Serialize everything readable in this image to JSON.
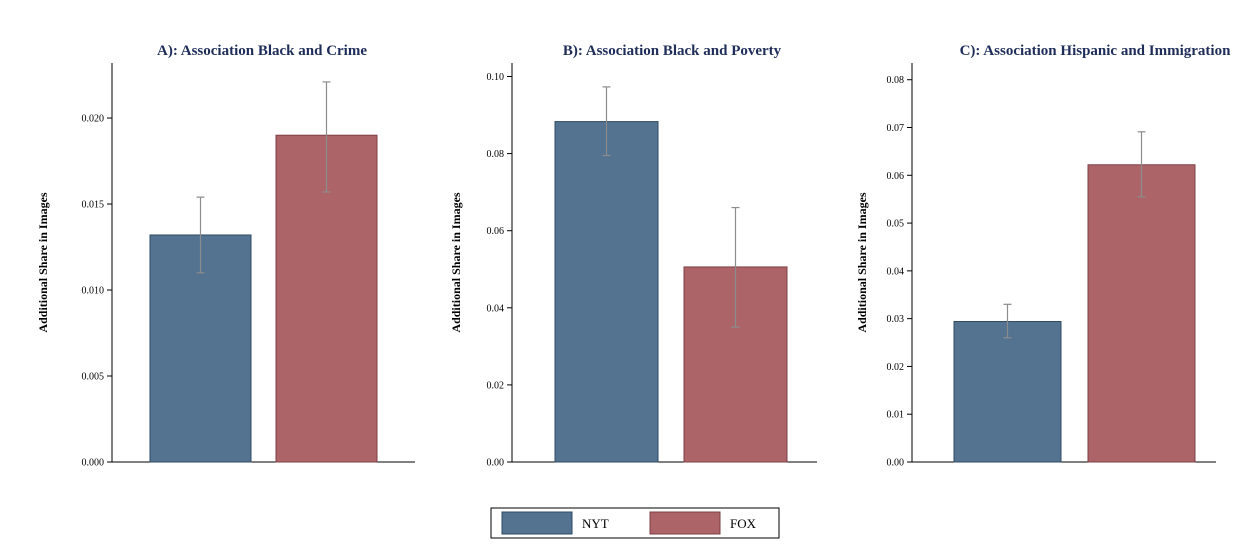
{
  "chart_data": [
    {
      "type": "bar",
      "title": "A): Association Black and Crime",
      "ylabel": "Additional Share in Images",
      "xlabel": "",
      "categories": [
        "NYT",
        "FOX"
      ],
      "values": [
        0.0132,
        0.019
      ],
      "error_bars": [
        [
          0.011,
          0.0154
        ],
        [
          0.0157,
          0.0221
        ]
      ],
      "ylim": [
        0,
        0.0232
      ],
      "yticks": [
        0.0,
        0.005,
        0.01,
        0.015,
        0.02
      ],
      "ytick_labels": [
        "0.000",
        "0.005",
        "0.010",
        "0.015",
        "0.020"
      ]
    },
    {
      "type": "bar",
      "title": "B): Association Black and Poverty",
      "ylabel": "Additional Share in Images",
      "xlabel": "",
      "categories": [
        "NYT",
        "FOX"
      ],
      "values": [
        0.0883,
        0.0506
      ],
      "error_bars": [
        [
          0.0795,
          0.0973
        ],
        [
          0.035,
          0.066
        ]
      ],
      "ylim": [
        0,
        0.1035
      ],
      "yticks": [
        0.0,
        0.02,
        0.04,
        0.06,
        0.08,
        0.1
      ],
      "ytick_labels": [
        "0.00",
        "0.02",
        "0.04",
        "0.06",
        "0.08",
        "0.10"
      ]
    },
    {
      "type": "bar",
      "title": "C): Association Hispanic and Immigration",
      "ylabel": "Additional Share in Images",
      "xlabel": "",
      "categories": [
        "NYT",
        "FOX"
      ],
      "values": [
        0.0294,
        0.0622
      ],
      "error_bars": [
        [
          0.026,
          0.033
        ],
        [
          0.0555,
          0.0691
        ]
      ],
      "ylim": [
        0,
        0.0835
      ],
      "yticks": [
        0.0,
        0.01,
        0.02,
        0.03,
        0.04,
        0.05,
        0.06,
        0.07,
        0.08
      ],
      "ytick_labels": [
        "0.00",
        "0.01",
        "0.02",
        "0.03",
        "0.04",
        "0.05",
        "0.06",
        "0.07",
        "0.08"
      ]
    }
  ],
  "legend": {
    "placement": "bottom-center",
    "items": [
      {
        "label": "NYT",
        "color": "#537391"
      },
      {
        "label": "FOX",
        "color": "#ac6469"
      }
    ]
  },
  "colors": {
    "nyt_fill": "#537391",
    "nyt_edge": "#2f4a63",
    "fox_fill": "#ac6469",
    "fox_edge": "#7e3f44",
    "error_bar": "#8c8c8c",
    "title": "#1f2d5a"
  }
}
